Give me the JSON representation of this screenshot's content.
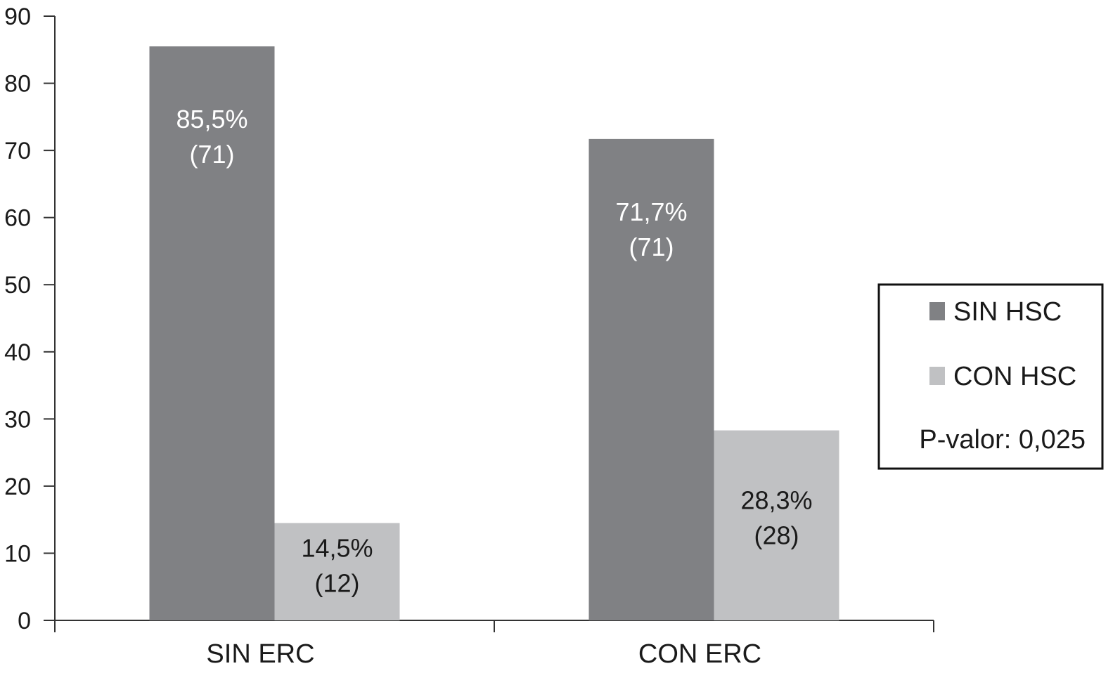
{
  "chart_data": {
    "type": "bar",
    "categories": [
      "SIN ERC",
      "CON ERC"
    ],
    "series": [
      {
        "name": "SIN HSC",
        "values": [
          85.5,
          71.7
        ],
        "labels": [
          "85,5%",
          "71,7%"
        ],
        "counts": [
          "(71)",
          "(71)"
        ],
        "color": "#808184",
        "label_color": "#ffffff"
      },
      {
        "name": "CON HSC",
        "values": [
          14.5,
          28.3
        ],
        "labels": [
          "14,5%",
          "28,3%"
        ],
        "counts": [
          "(12)",
          "(28)"
        ],
        "color": "#c0c1c3",
        "label_color": "#1a1a1a"
      }
    ],
    "ylim": [
      0,
      90
    ],
    "yticks": [
      0,
      10,
      20,
      30,
      40,
      50,
      60,
      70,
      80,
      90
    ],
    "legend_position": "right",
    "annotation": "P-valor: 0,025"
  }
}
